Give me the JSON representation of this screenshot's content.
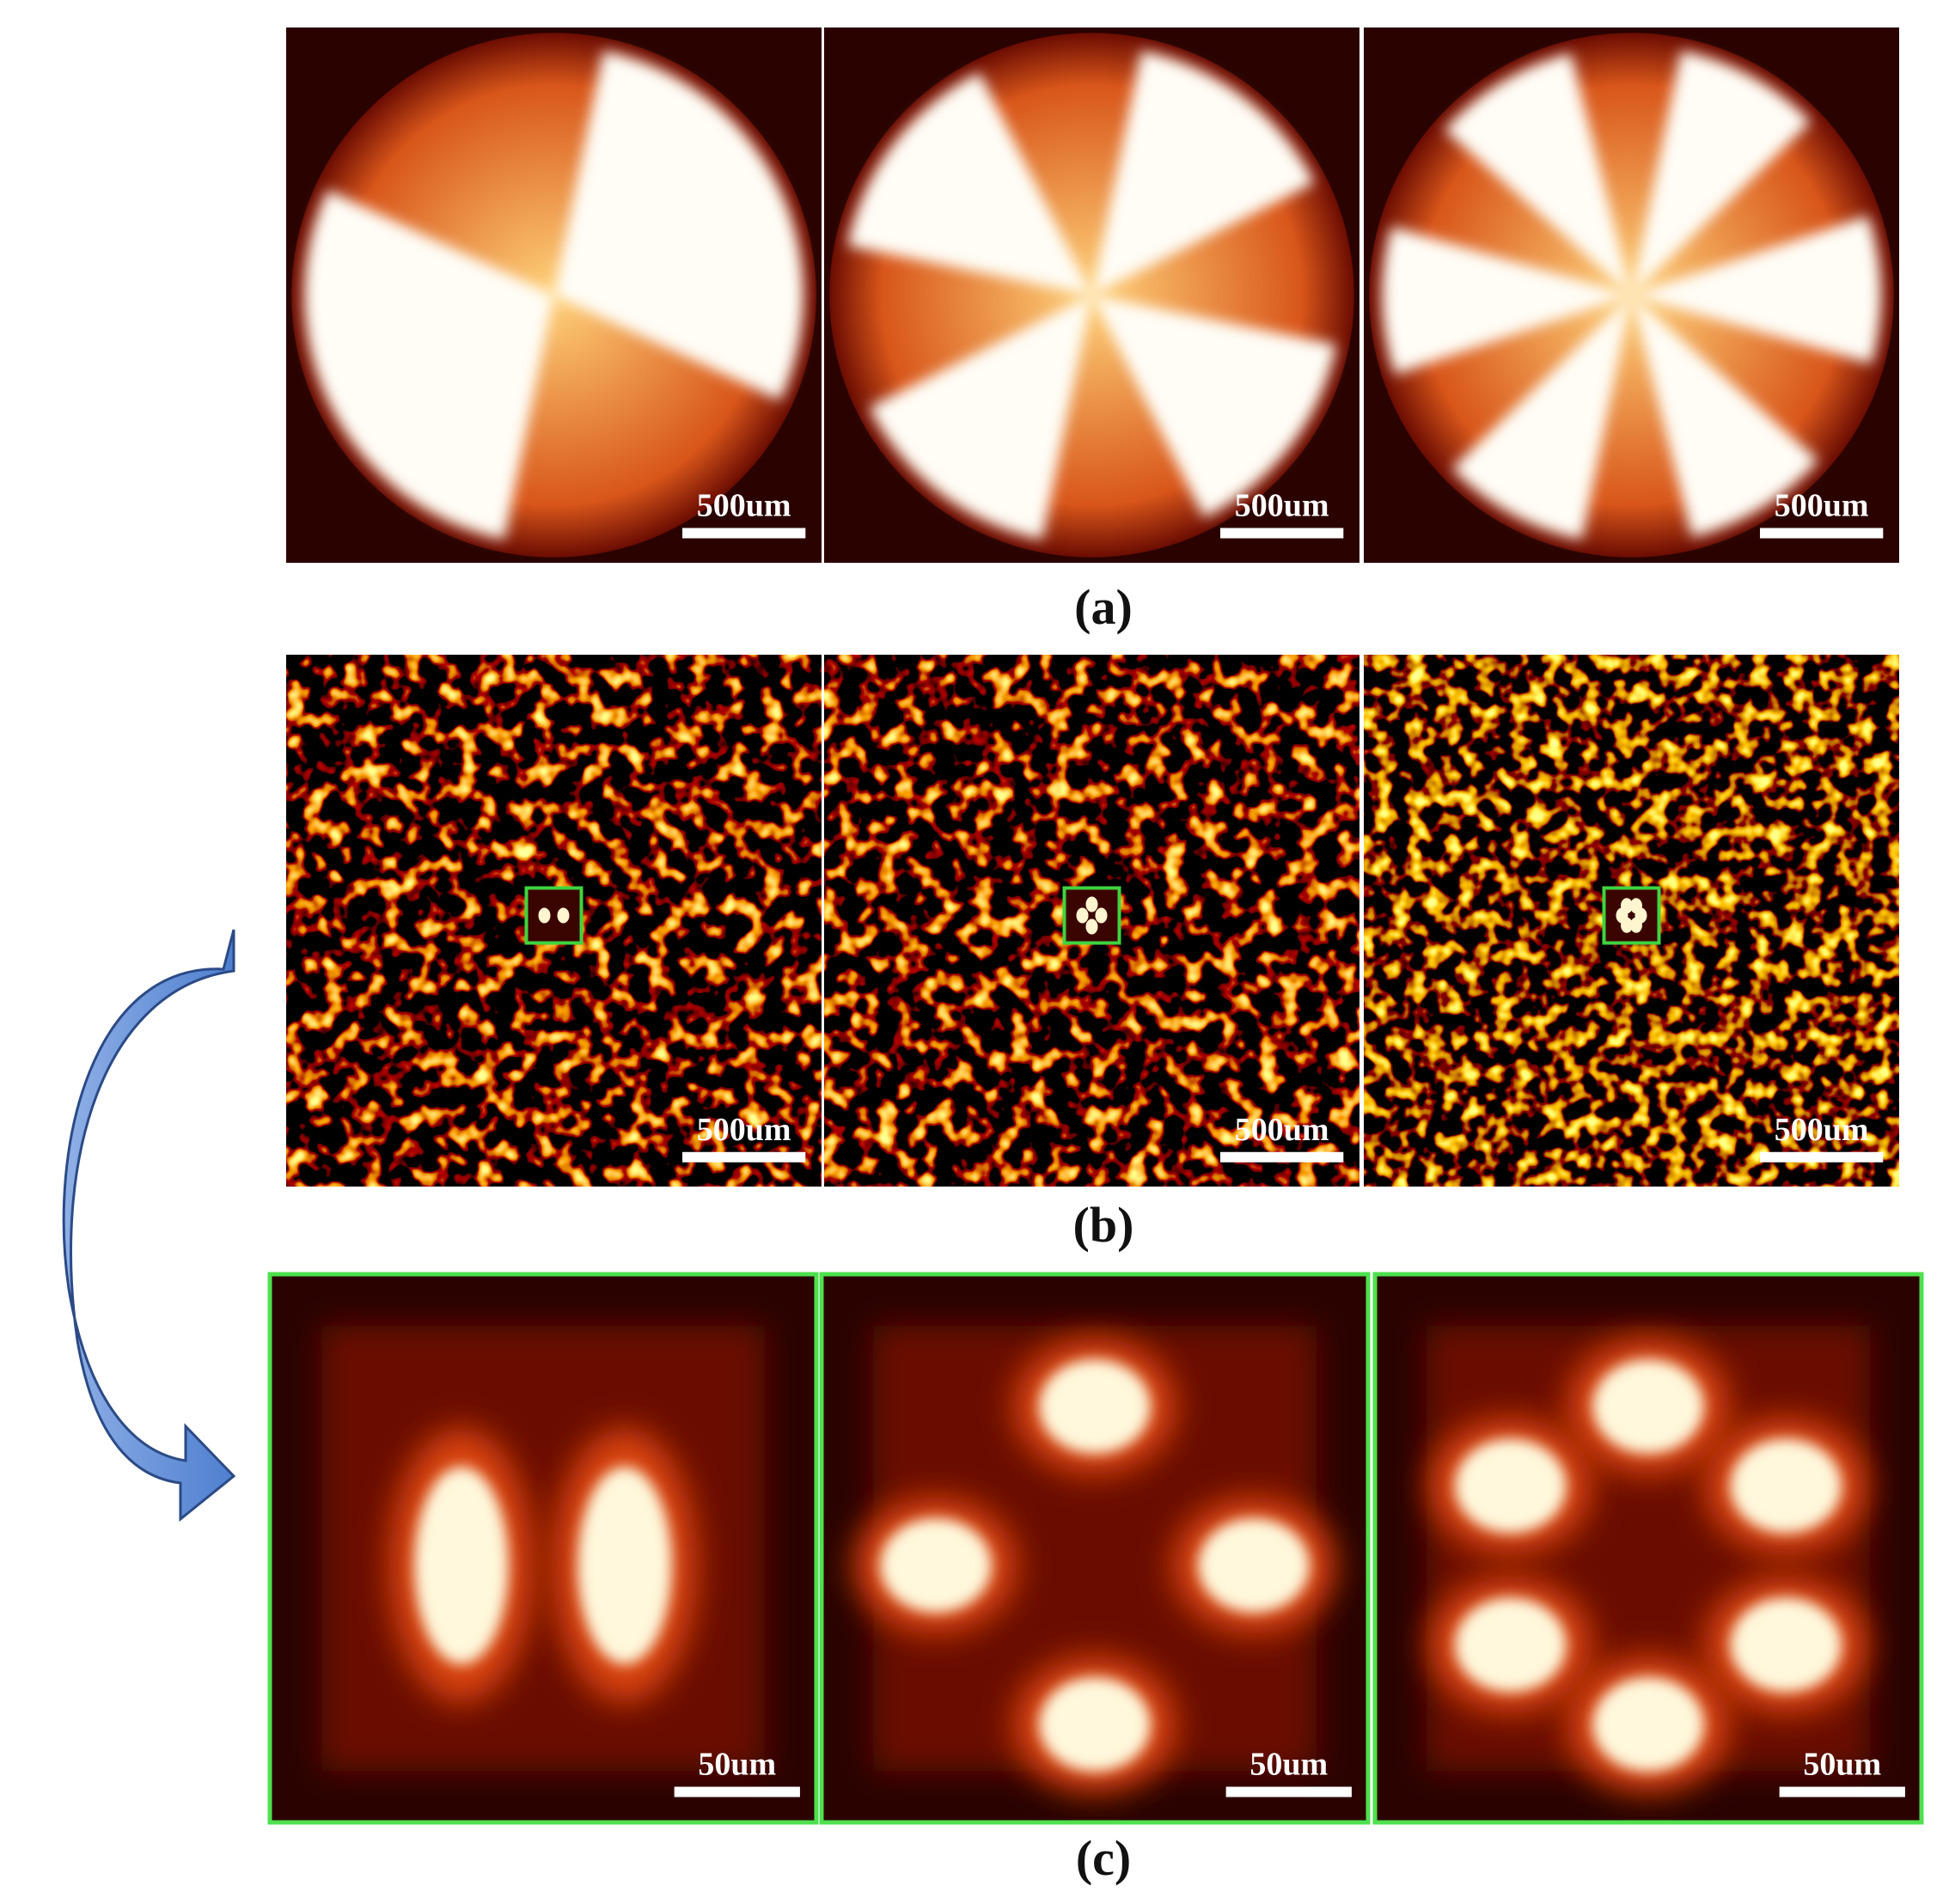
{
  "figure": {
    "rows": [
      {
        "label": "(a)",
        "panels": [
          {
            "scale_bar": "500um"
          },
          {
            "scale_bar": "500um"
          },
          {
            "scale_bar": "500um"
          }
        ]
      },
      {
        "label": "(b)",
        "panels": [
          {
            "scale_bar": "500um"
          },
          {
            "scale_bar": "500um"
          },
          {
            "scale_bar": "500um"
          }
        ]
      },
      {
        "label": "(c)",
        "panels": [
          {
            "scale_bar": "50um"
          },
          {
            "scale_bar": "50um"
          },
          {
            "scale_bar": "50um"
          }
        ]
      }
    ]
  }
}
